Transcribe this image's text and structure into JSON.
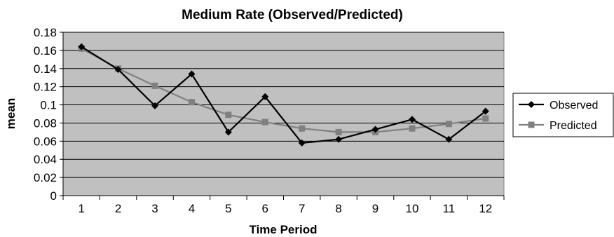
{
  "chart_data": {
    "type": "line",
    "title": "Medium Rate (Observed/Predicted)",
    "xlabel": "Time Period",
    "ylabel": "mean",
    "x": [
      1,
      2,
      3,
      4,
      5,
      6,
      7,
      8,
      9,
      10,
      11,
      12
    ],
    "ylim": [
      0,
      0.18
    ],
    "yticks": [
      0,
      0.02,
      0.04,
      0.06,
      0.08,
      0.1,
      0.12,
      0.14,
      0.16,
      0.18
    ],
    "yticklabels": [
      "0",
      "0.02",
      "0.04",
      "0.06",
      "0.08",
      "0.1",
      "0.12",
      "0.14",
      "0.16",
      "0.18"
    ],
    "grid": true,
    "legend_position": "right",
    "plot_background": "#c0c0c0",
    "series": [
      {
        "name": "Observed",
        "marker": "diamond",
        "color": "#000000",
        "values": [
          0.164,
          0.139,
          0.099,
          0.134,
          0.07,
          0.109,
          0.058,
          0.062,
          0.073,
          0.084,
          0.062,
          0.093
        ]
      },
      {
        "name": "Predicted",
        "marker": "square",
        "color": "#808080",
        "values": [
          0.162,
          0.14,
          0.121,
          0.103,
          0.089,
          0.081,
          0.074,
          0.07,
          0.07,
          0.074,
          0.079,
          0.085
        ]
      }
    ]
  }
}
